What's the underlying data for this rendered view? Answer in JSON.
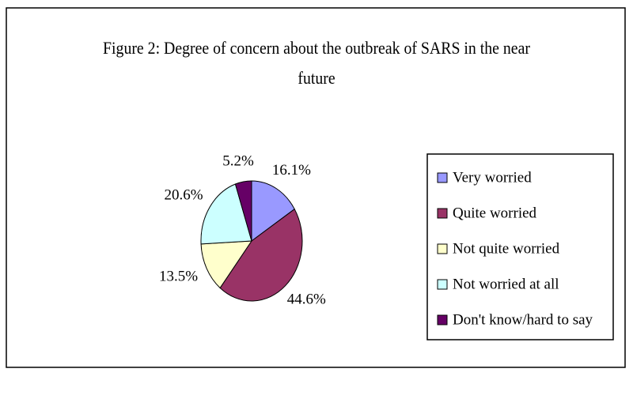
{
  "chart_data": {
    "type": "pie",
    "title": "Figure 2: Degree of concern about the outbreak of SARS in the near future",
    "categories": [
      "Very worried",
      "Quite worried",
      "Not quite worried",
      "Not worried at all",
      "Don't know/hard to say"
    ],
    "values": [
      16.1,
      44.6,
      13.5,
      20.6,
      5.2
    ],
    "value_labels": [
      "16.1%",
      "44.6%",
      "13.5%",
      "20.6%",
      "5.2%"
    ],
    "colors": [
      "#9999ff",
      "#993366",
      "#ffffcc",
      "#ccffff",
      "#660066"
    ],
    "legend": "right"
  }
}
